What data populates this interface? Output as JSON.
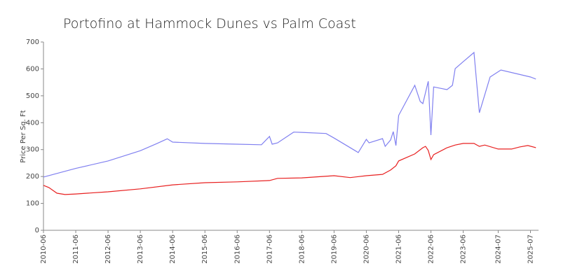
{
  "chart_data": {
    "type": "line",
    "title": "Portofino at Hammock Dunes vs Palm Coast",
    "y_label": "Price Per Sq. Ft",
    "xlim": [
      "2010-06",
      "2025-10"
    ],
    "xticks": [
      "2010-06",
      "2011-06",
      "2012-06",
      "2013-06",
      "2014-06",
      "2015-06",
      "2016-06",
      "2017-06",
      "2018-06",
      "2019-06",
      "2020-06",
      "2021-06",
      "2022-06",
      "2023-06",
      "2024-07",
      "2025-07"
    ],
    "ylim": [
      0,
      700
    ],
    "yticks": [
      0,
      100,
      200,
      300,
      400,
      500,
      600,
      700
    ],
    "series": [
      {
        "color": "#8080f0",
        "x": [
          "2010-06",
          "2011-06",
          "2012-06",
          "2013-06",
          "2013-12",
          "2014-04",
          "2014-06",
          "2015-06",
          "2016-06",
          "2017-03",
          "2017-06",
          "2017-07",
          "2017-09",
          "2018-03",
          "2018-06",
          "2019-03",
          "2019-06",
          "2020-03",
          "2020-06",
          "2020-07",
          "2020-12",
          "2021-01",
          "2021-03",
          "2021-04",
          "2021-05",
          "2021-06",
          "2021-12",
          "2022-02",
          "2022-03",
          "2022-05",
          "2022-06",
          "2022-07",
          "2022-12",
          "2023-02",
          "2023-03",
          "2023-06",
          "2023-10",
          "2023-12",
          "2024-04",
          "2024-08",
          "2025-07",
          "2025-09"
        ],
        "values": [
          198,
          230,
          258,
          296,
          322,
          340,
          328,
          323,
          320,
          318,
          349,
          320,
          325,
          365,
          364,
          360,
          343,
          289,
          338,
          325,
          341,
          312,
          336,
          367,
          315,
          427,
          539,
          479,
          471,
          554,
          354,
          533,
          523,
          539,
          601,
          627,
          661,
          437,
          570,
          596,
          570,
          562
        ]
      },
      {
        "color": "#e82020",
        "x": [
          "2010-06",
          "2010-08",
          "2010-11",
          "2011-02",
          "2011-06",
          "2012-06",
          "2013-06",
          "2014-06",
          "2015-06",
          "2016-06",
          "2017-06",
          "2017-09",
          "2018-06",
          "2019-06",
          "2019-12",
          "2020-06",
          "2020-12",
          "2021-03",
          "2021-05",
          "2021-06",
          "2021-12",
          "2022-03",
          "2022-04",
          "2022-05",
          "2022-06",
          "2022-07",
          "2022-12",
          "2023-03",
          "2023-06",
          "2023-10",
          "2023-12",
          "2024-02",
          "2024-07",
          "2024-12",
          "2025-03",
          "2025-06",
          "2025-09"
        ],
        "values": [
          167,
          159,
          138,
          133,
          135,
          143,
          154,
          169,
          177,
          180,
          185,
          193,
          195,
          203,
          196,
          203,
          208,
          224,
          240,
          258,
          284,
          307,
          312,
          297,
          263,
          281,
          307,
          317,
          323,
          323,
          312,
          317,
          302,
          302,
          310,
          315,
          307
        ]
      }
    ]
  }
}
